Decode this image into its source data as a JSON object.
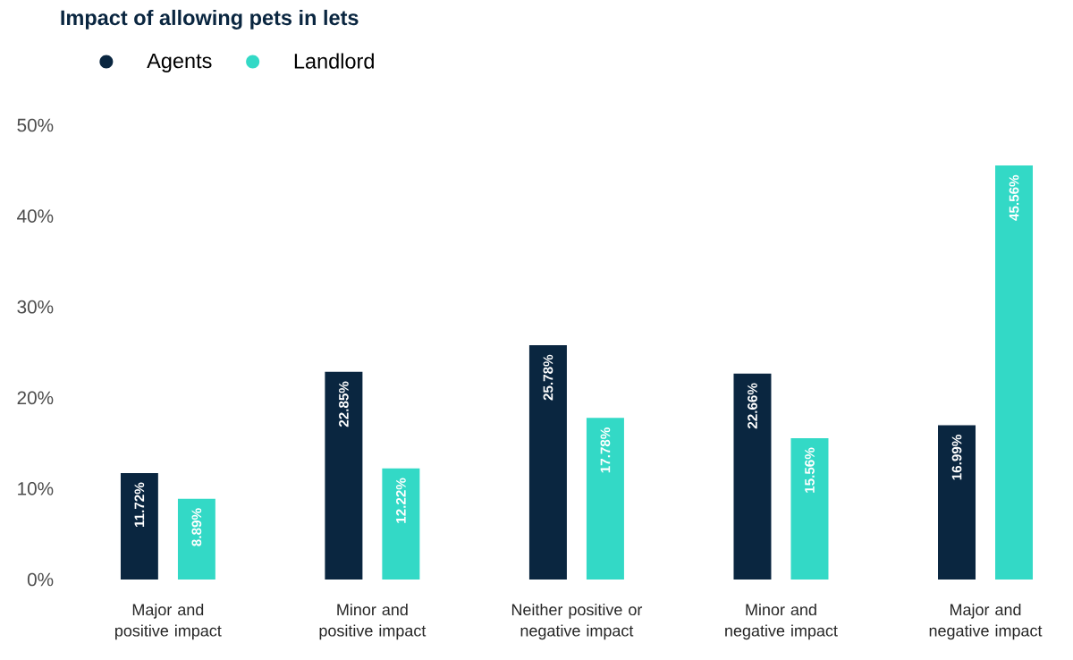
{
  "chart_data": {
    "type": "bar",
    "title": "Impact of allowing pets in lets",
    "categories": [
      "Major and positive impact",
      "Minor and positive impact",
      "Neither positive or negative impact",
      "Minor and negative impact",
      "Major and negative impact"
    ],
    "series": [
      {
        "name": "Agents",
        "color": "#0a2640",
        "values": [
          11.72,
          22.85,
          25.78,
          22.66,
          16.99
        ],
        "value_labels": [
          "11.72%",
          "22.85%",
          "25.78%",
          "22.66%",
          "16.99%"
        ]
      },
      {
        "name": "Landlord",
        "color": "#33d9c6",
        "values": [
          8.89,
          12.22,
          17.78,
          15.56,
          45.56
        ],
        "value_labels": [
          "8.89%",
          "12.22%",
          "17.78%",
          "15.56%",
          "45.56%"
        ]
      }
    ],
    "ylim": [
      0,
      50
    ],
    "yticks": [
      {
        "value": 0,
        "label": "0%"
      },
      {
        "value": 10,
        "label": "10%"
      },
      {
        "value": 20,
        "label": "20%"
      },
      {
        "value": 30,
        "label": "30%"
      },
      {
        "value": 40,
        "label": "40%"
      },
      {
        "value": 50,
        "label": "50%"
      }
    ],
    "grid": false,
    "legend": "top left"
  }
}
